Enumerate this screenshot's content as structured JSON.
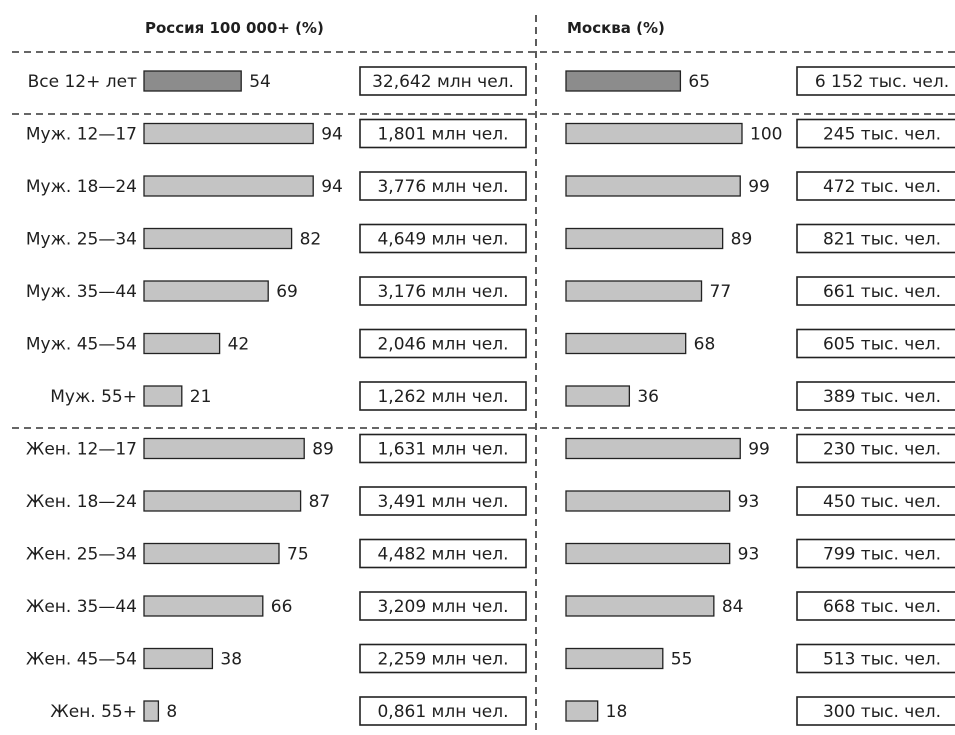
{
  "chart_data": {
    "type": "bar",
    "panels": [
      {
        "title": "Россия 100 000+ (%)",
        "rows": [
          {
            "label": "Все 12+ лет",
            "value": 54,
            "abs": "32,642 млн чел."
          },
          {
            "label": "Муж. 12—17",
            "value": 94,
            "abs": "1,801 млн чел."
          },
          {
            "label": "Муж. 18—24",
            "value": 94,
            "abs": "3,776 млн чел."
          },
          {
            "label": "Муж. 25—34",
            "value": 82,
            "abs": "4,649 млн чел."
          },
          {
            "label": "Муж. 35—44",
            "value": 69,
            "abs": "3,176 млн чел."
          },
          {
            "label": "Муж. 45—54",
            "value": 42,
            "abs": "2,046 млн чел."
          },
          {
            "label": "Муж. 55+",
            "value": 21,
            "abs": "1,262 млн чел."
          },
          {
            "label": "Жен. 12—17",
            "value": 89,
            "abs": "1,631 млн чел."
          },
          {
            "label": "Жен. 18—24",
            "value": 87,
            "abs": "3,491 млн чел."
          },
          {
            "label": "Жен. 25—34",
            "value": 75,
            "abs": "4,482 млн чел."
          },
          {
            "label": "Жен. 35—44",
            "value": 66,
            "abs": "3,209 млн чел."
          },
          {
            "label": "Жен. 45—54",
            "value": 38,
            "abs": "2,259 млн чел."
          },
          {
            "label": "Жен. 55+",
            "value": 8,
            "abs": "0,861 млн чел."
          }
        ]
      },
      {
        "title": "Москва (%)",
        "rows": [
          {
            "value": 65,
            "abs": "6 152 тыс. чел."
          },
          {
            "value": 100,
            "abs": "245 тыс. чел."
          },
          {
            "value": 99,
            "abs": "472 тыс. чел."
          },
          {
            "value": 89,
            "abs": "821 тыс. чел."
          },
          {
            "value": 77,
            "abs": "661 тыс. чел."
          },
          {
            "value": 68,
            "abs": "605 тыс. чел."
          },
          {
            "value": 36,
            "abs": "389 тыс. чел."
          },
          {
            "value": 99,
            "abs": "230 тыс. чел."
          },
          {
            "value": 93,
            "abs": "450 тыс. чел."
          },
          {
            "value": 93,
            "abs": "799 тыс. чел."
          },
          {
            "value": 84,
            "abs": "668 тыс. чел."
          },
          {
            "value": 55,
            "abs": "513 тыс. чел."
          },
          {
            "value": 18,
            "abs": "300 тыс. чел."
          }
        ]
      }
    ],
    "highlight_row": 0,
    "colors": {
      "highlight": "#8c8c8c",
      "bar": "#c4c4c4",
      "border": "#222222"
    }
  }
}
